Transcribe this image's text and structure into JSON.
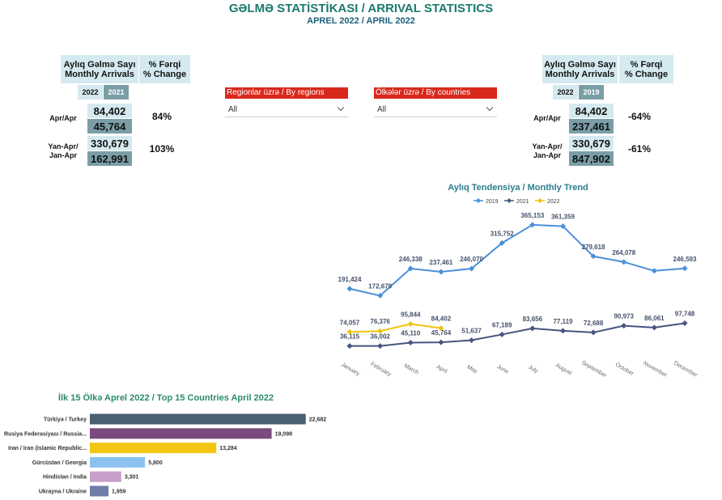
{
  "header": {
    "title": "GƏLMƏ STATİSTİKASI / ARRIVAL STATISTICS",
    "subtitle": "APREL 2022 / APRIL 2022"
  },
  "kpi_panels": [
    {
      "heading": [
        "Aylıq Gəlmə Sayı",
        "Monthly Arrivals"
      ],
      "change_heading": [
        "% Fərqi",
        "% Change"
      ],
      "years": [
        "2022",
        "2021"
      ],
      "rows": [
        {
          "label": [
            "Apr/Apr"
          ],
          "current": "84,402",
          "previous": "45,764",
          "change": "84%"
        },
        {
          "label": [
            "Yan-Apr/",
            "Jan-Apr"
          ],
          "current": "330,679",
          "previous": "162,991",
          "change": "103%"
        }
      ]
    },
    {
      "heading": [
        "Aylıq Gəlmə Sayı",
        "Monthly Arrivals"
      ],
      "change_heading": [
        "% Fərqi",
        "% Change"
      ],
      "years": [
        "2022",
        "2019"
      ],
      "rows": [
        {
          "label": [
            "Apr/Apr"
          ],
          "current": "84,402",
          "previous": "237,461",
          "change": "-64%"
        },
        {
          "label": [
            "Yan-Apr/",
            "Jan-Apr"
          ],
          "current": "330,679",
          "previous": "847,902",
          "change": "-61%"
        }
      ]
    }
  ],
  "filters": [
    {
      "label": "Regionlar üzrə / By regions",
      "value": "All"
    },
    {
      "label": "Ölkələr üzrə / By countries",
      "value": "All"
    }
  ],
  "chart_data": [
    {
      "type": "line",
      "title": "Aylıq Tendensiya  /  Monthly Trend",
      "categories": [
        "January",
        "February",
        "March",
        "April",
        "May",
        "June",
        "July",
        "August",
        "September",
        "October",
        "November",
        "December"
      ],
      "ylim": [
        0,
        400000
      ],
      "series": [
        {
          "name": "2019",
          "color": "#4a8fd8",
          "values": [
            191424,
            172679,
            246338,
            237461,
            246070,
            315752,
            365153,
            361359,
            279618,
            264078,
            240000,
            246593
          ],
          "value_labels": [
            "191,424",
            "172,679",
            "246,338",
            "237,461",
            "246,070",
            "315,752",
            "365,153",
            "361,359",
            "279,618",
            "264,078",
            null,
            "246,593"
          ]
        },
        {
          "name": "2021",
          "color": "#46557f",
          "values": [
            36115,
            36002,
            45110,
            45764,
            51637,
            67189,
            83656,
            77119,
            72688,
            90973,
            86061,
            97748
          ],
          "value_labels": [
            "36,115",
            "36,002",
            "45,110",
            "45,764",
            "51,637",
            "67,189",
            "83,656",
            "77,119",
            "72,688",
            "90,973",
            "86,061",
            "97,748"
          ]
        },
        {
          "name": "2022",
          "color": "#f0c30f",
          "values": [
            74057,
            76376,
            95844,
            84402,
            null,
            null,
            null,
            null,
            null,
            null,
            null,
            null
          ],
          "value_labels": [
            "74,057",
            "76,376",
            "95,844",
            "84,402",
            null,
            null,
            null,
            null,
            null,
            null,
            null,
            null
          ]
        }
      ]
    },
    {
      "type": "hbar",
      "title": "İlk 15 Ölkə Aprel 2022 / Top 15 Countries April 2022",
      "categories": [
        "Türkiyə / Turkey",
        "Rusiya Federasiyası / Russia...",
        "Iran / Iran (Islamic Republic...",
        "Gürcüstan / Georgia",
        "Hindistan / India",
        "Ukrayna / Ukraine"
      ],
      "values": [
        22682,
        19098,
        13284,
        5800,
        3301,
        1959
      ],
      "value_labels": [
        "22,682",
        "19,098",
        "13,284",
        "5,800",
        "3,301",
        "1,959"
      ],
      "colors": [
        "#4b5f72",
        "#7b4a7c",
        "#f2c512",
        "#8cc2ef",
        "#c6a0c8",
        "#6e7ea8"
      ],
      "xlim": [
        0,
        25000
      ]
    }
  ]
}
